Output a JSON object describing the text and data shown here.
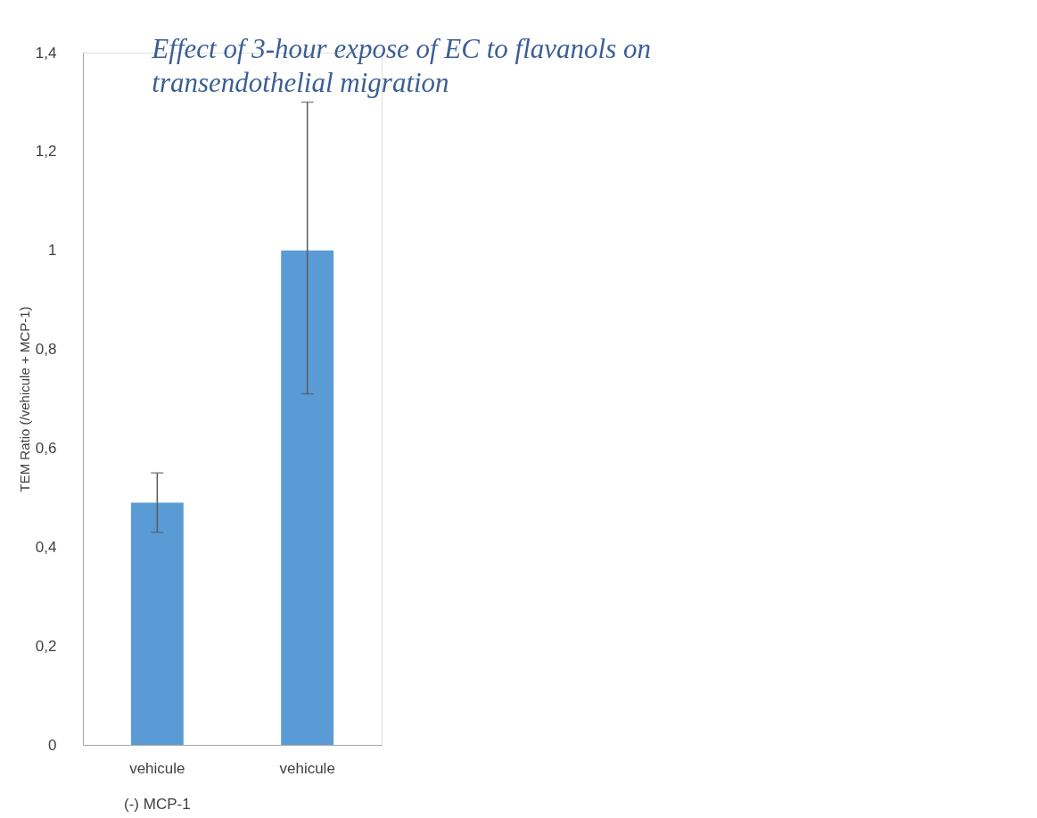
{
  "chart_data": {
    "type": "bar",
    "title": [
      "Effect of 3-hour expose of EC to flavanols on",
      "transendothelial migration"
    ],
    "ylabel": "TEM Ratio (/vehicule + MCP-1)",
    "categories": [
      "vehicule",
      "vehicule"
    ],
    "values": [
      0.49,
      1.0
    ],
    "errors": [
      [
        0.43,
        0.55
      ],
      [
        0.71,
        1.3
      ]
    ],
    "color": "#5b9bd5",
    "ylim": [
      0,
      1.4
    ],
    "yticks": [
      0,
      {
        "value": 0.2,
        "label": "0,2"
      },
      {
        "value": 0.4,
        "label": "0,4"
      },
      {
        "value": 0.6,
        "label": "0,6"
      },
      {
        "value": 0.8,
        "label": "0,8"
      },
      1,
      {
        "value": 1.2,
        "label": "1,2"
      },
      {
        "value": 1.4,
        "label": "1,4"
      }
    ],
    "annotations": [
      "(-) MCP-1"
    ],
    "grid": false
  }
}
